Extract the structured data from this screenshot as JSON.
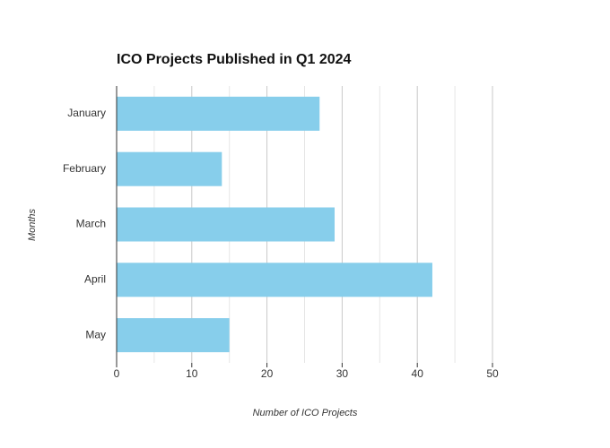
{
  "chart_data": {
    "type": "bar",
    "orientation": "horizontal",
    "title": "ICO Projects Published in Q1 2024",
    "x_label": "Number of ICO Projects",
    "y_label": "Months",
    "categories": [
      "January",
      "February",
      "March",
      "April",
      "May"
    ],
    "values": [
      27,
      14,
      29,
      42,
      15
    ],
    "color": "#87ceeb",
    "xlim": [
      0,
      50
    ],
    "xticks": [
      0,
      10,
      20,
      30,
      40,
      50
    ],
    "minor_xticks": [
      5,
      15,
      25,
      35,
      45
    ],
    "grid": true
  }
}
